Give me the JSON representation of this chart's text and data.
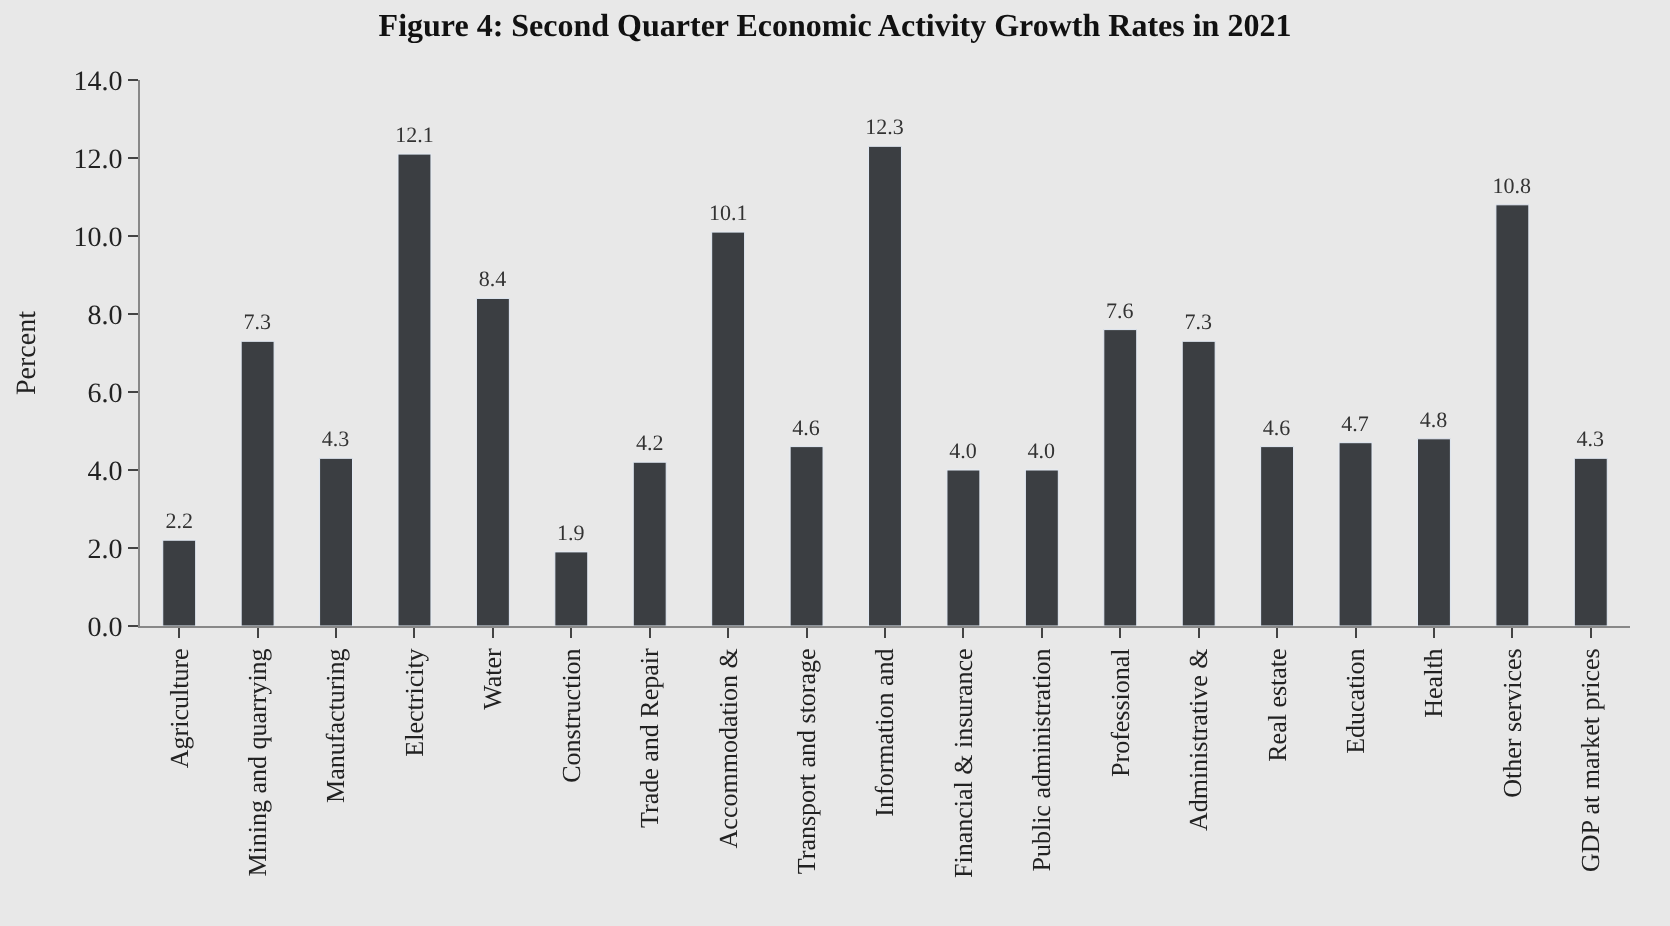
{
  "chart_data": {
    "type": "bar",
    "title": "Figure 4: Second Quarter Economic Activity Growth Rates in 2021",
    "ylabel": "Percent",
    "categories": [
      "Agriculture",
      "Mining and quarrying",
      "Manufacturing",
      "Electricity",
      "Water",
      "Construction",
      "Trade and Repair",
      "Accommodation &",
      "Transport and storage",
      "Information and",
      "Financial & insurance",
      "Public administration",
      "Professional",
      "Administrative &",
      "Real estate",
      "Education",
      "Health",
      "Other services",
      "GDP at market prices"
    ],
    "values": [
      2.2,
      7.3,
      4.3,
      12.1,
      8.4,
      1.9,
      4.2,
      10.1,
      4.6,
      12.3,
      4.0,
      4.0,
      7.6,
      7.3,
      4.6,
      4.7,
      4.8,
      10.8,
      4.3
    ],
    "color": "#3b3e42",
    "ylim": [
      0,
      14
    ],
    "yticks": [
      {
        "value": 0,
        "label": "0.0"
      },
      {
        "value": 2,
        "label": "2.0"
      },
      {
        "value": 4,
        "label": "4.0"
      },
      {
        "value": 6,
        "label": "6.0"
      },
      {
        "value": 8,
        "label": "8.0"
      },
      {
        "value": 10,
        "label": "10.0"
      },
      {
        "value": 12,
        "label": "12.0"
      },
      {
        "value": 14,
        "label": "14.0"
      }
    ],
    "value_labels": [
      "2.2",
      "7.3",
      "4.3",
      "12.1",
      "8.4",
      "1.9",
      "4.2",
      "10.1",
      "4.6",
      "12.3",
      "4.0",
      "4.0",
      "7.6",
      "7.3",
      "4.6",
      "4.7",
      "4.8",
      "10.8",
      "4.3"
    ],
    "grid": false,
    "legend": false
  }
}
